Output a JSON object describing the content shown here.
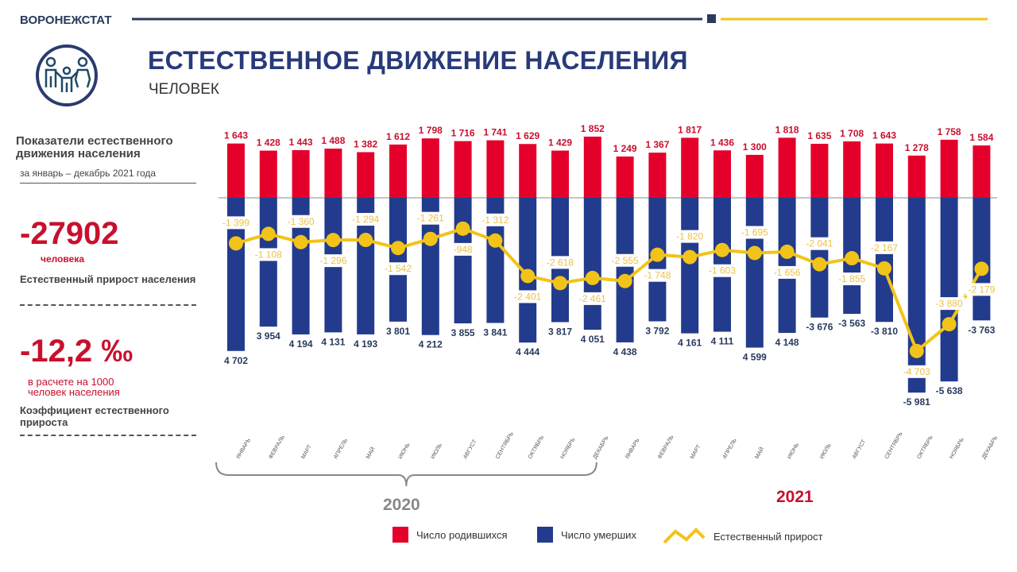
{
  "header": {
    "org": "ВОРОНЕЖСТАТ",
    "title": "ЕСТЕСТВЕННОЕ ДВИЖЕНИЕ НАСЕЛЕНИЯ",
    "subtitle": "ЧЕЛОВЕК",
    "icon": "family-icon"
  },
  "panel": {
    "heading": "Показатели естественного движения населения",
    "period": "за январь – декабрь 2021 года",
    "growth_value": "-27902",
    "growth_unit": "человека",
    "growth_label": "Естественный  прирост населения",
    "rate_value": "-12,2 ‰",
    "rate_unit": "в расчете на 1000 человек населения",
    "rate_label": "Коэффициент  естественного прироста"
  },
  "colors": {
    "births": "#e4002b",
    "deaths": "#233b8c",
    "growth": "#f2c318",
    "header_line": "#283a5e",
    "accent": "#f2c318"
  },
  "chart_data": {
    "type": "bar",
    "categories": [
      "ЯНВАРЬ",
      "ФЕВРАЛЬ",
      "МАРТ",
      "АПРЕЛЬ",
      "МАЙ",
      "ИЮНЬ",
      "ИЮЛЬ",
      "АВГУСТ",
      "СЕНТЯБРЬ",
      "ОКТЯБРЬ",
      "НОЯБРЬ",
      "ДЕКАБРЬ",
      "ЯНВАРЬ",
      "ФЕВРАЛЬ",
      "МАРТ",
      "АПРЕЛЬ",
      "МАЙ",
      "ИЮНЬ",
      "ИЮЛЬ",
      "АВГУСТ",
      "СЕНТЯБРЬ",
      "ОКТЯБРЬ",
      "НОЯБРЬ",
      "ДЕКАБРЬ"
    ],
    "groups": [
      {
        "label": "2020",
        "count": 12
      },
      {
        "label": "2021",
        "count": 12
      }
    ],
    "series": [
      {
        "name": "Число родившихся",
        "type": "bar",
        "values": [
          1643,
          1428,
          1443,
          1488,
          1382,
          1612,
          1798,
          1716,
          1741,
          1629,
          1429,
          1852,
          1249,
          1367,
          1817,
          1436,
          1300,
          1818,
          1635,
          1708,
          1643,
          1278,
          1758,
          1584
        ],
        "labels": [
          "1 643",
          "1 428",
          "1 443",
          "1 488",
          "1 382",
          "1 612",
          "1 798",
          "1 716",
          "1 741",
          "1 629",
          "1 429",
          "1 852",
          "1 249",
          "1 367",
          "1 817",
          "1 436",
          "1 300",
          "1 818",
          "1 635",
          "1 708",
          "1 643",
          "1 278",
          "1 758",
          "1 584"
        ]
      },
      {
        "name": "Число умерших",
        "type": "bar",
        "values": [
          -4702,
          -3954,
          -4194,
          -4131,
          -4193,
          -3801,
          -4212,
          -3855,
          -3841,
          -4444,
          -3817,
          -4051,
          -4438,
          -3792,
          -4161,
          -4111,
          -4599,
          -4148,
          -3676,
          -3563,
          -3810,
          -5981,
          -5638,
          -3763
        ],
        "labels": [
          "4 702",
          "3 954",
          "4 194",
          "4 131",
          "4 193",
          "3 801",
          "4 212",
          "3 855",
          "3 841",
          "4 444",
          "3 817",
          "4 051",
          "4 438",
          "3 792",
          "4 161",
          "4 111",
          "4 599",
          "4 148",
          "-3 676",
          "-3 563",
          "-3 810",
          "-5 981",
          "-5 638",
          "-3 763"
        ]
      },
      {
        "name": "Естественный прирост",
        "type": "line",
        "values": [
          -1399,
          -1108,
          -1360,
          -1296,
          -1294,
          -1542,
          -1261,
          -948,
          -1312,
          -2401,
          -2618,
          -2461,
          -2555,
          -1748,
          -1820,
          -1603,
          -1695,
          -1656,
          -2041,
          -1855,
          -2167,
          -4703,
          -3880,
          -2179
        ],
        "labels": [
          "-1 399",
          "-1 108",
          "-1 360",
          "-1 296",
          "-1 294",
          "-1 542",
          "-1 261",
          "-948",
          "-1 312",
          "-2 401",
          "-2 618",
          "-2 461",
          "-2 555",
          "-1 748",
          "-1 820",
          "-1 603",
          "-1 695",
          "-1 656",
          "-2 041",
          "-1 855",
          "-2 167",
          "-4 703",
          "-3 880",
          "-2 179"
        ]
      }
    ],
    "legend_position": "bottom",
    "grid": false
  }
}
